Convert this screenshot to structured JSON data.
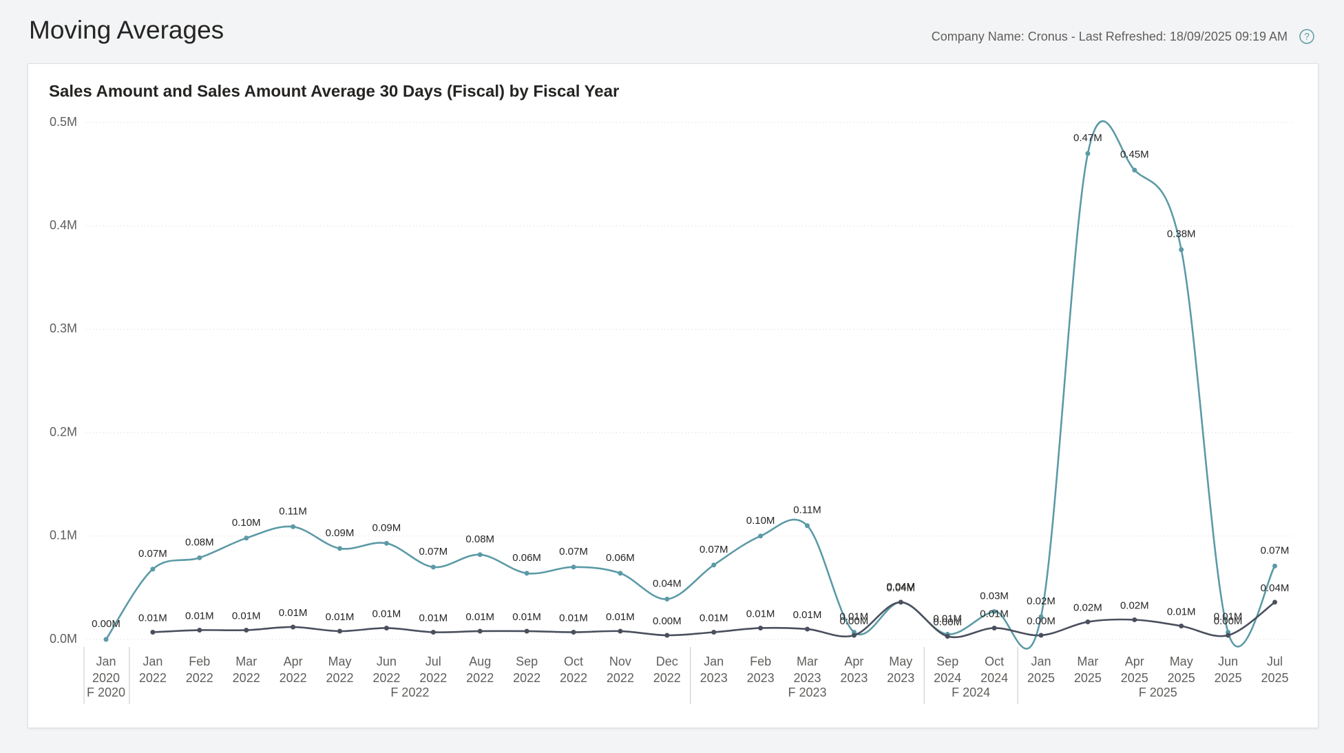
{
  "header": {
    "title": "Moving Averages",
    "info": "Company Name: Cronus - Last Refreshed: 18/09/2025 09:19 AM"
  },
  "chart_data": {
    "type": "line",
    "title": "Sales Amount and Sales Amount Average 30 Days (Fiscal) by Fiscal Year",
    "categories": [
      [
        "Jan",
        "2020"
      ],
      [
        "Jan",
        "2022"
      ],
      [
        "Feb",
        "2022"
      ],
      [
        "Mar",
        "2022"
      ],
      [
        "Apr",
        "2022"
      ],
      [
        "May",
        "2022"
      ],
      [
        "Jun",
        "2022"
      ],
      [
        "Jul",
        "2022"
      ],
      [
        "Aug",
        "2022"
      ],
      [
        "Sep",
        "2022"
      ],
      [
        "Oct",
        "2022"
      ],
      [
        "Nov",
        "2022"
      ],
      [
        "Dec",
        "2022"
      ],
      [
        "Jan",
        "2023"
      ],
      [
        "Feb",
        "2023"
      ],
      [
        "Mar",
        "2023"
      ],
      [
        "Apr",
        "2023"
      ],
      [
        "May",
        "2023"
      ],
      [
        "Sep",
        "2024"
      ],
      [
        "Oct",
        "2024"
      ],
      [
        "Jan",
        "2025"
      ],
      [
        "Mar",
        "2025"
      ],
      [
        "Apr",
        "2025"
      ],
      [
        "May",
        "2025"
      ],
      [
        "Jun",
        "2025"
      ],
      [
        "Jul",
        "2025"
      ]
    ],
    "groups": [
      {
        "label": "F 2020",
        "count": 1
      },
      {
        "label": "F 2022",
        "count": 12
      },
      {
        "label": "F 2023",
        "count": 5
      },
      {
        "label": "F 2024",
        "count": 2
      },
      {
        "label": "F 2025",
        "count": 6
      }
    ],
    "series": [
      {
        "color": "#5b9aa6",
        "values": [
          0,
          68000,
          79000,
          98000,
          109000,
          88000,
          93000,
          70000,
          82000,
          64000,
          70000,
          64000,
          39000,
          72000,
          100000,
          110000,
          7000,
          36000,
          5000,
          27000,
          22000,
          470000,
          454000,
          377000,
          7000,
          71000
        ],
        "value_labels": [
          "0.00M",
          "0.07M",
          "0.08M",
          "0.10M",
          "0.11M",
          "0.09M",
          "0.09M",
          "0.07M",
          "0.08M",
          "0.06M",
          "0.07M",
          "0.06M",
          "0.04M",
          "0.07M",
          "0.10M",
          "0.11M",
          "0.01M",
          "0.04M",
          "0.01M",
          "0.03M",
          "0.02M",
          "0.47M",
          "0.45M",
          "0.38M",
          "0.01M",
          "0.07M"
        ]
      },
      {
        "color": "#4a4f5e",
        "values": [
          null,
          7000,
          9000,
          9000,
          12000,
          8000,
          11000,
          7000,
          8000,
          8000,
          7000,
          8000,
          4000,
          7000,
          11000,
          10000,
          4000,
          36000,
          3000,
          11000,
          4000,
          17000,
          19000,
          13000,
          4000,
          36000
        ],
        "value_labels": [
          null,
          "0.01M",
          "0.01M",
          "0.01M",
          "0.01M",
          "0.01M",
          "0.01M",
          "0.01M",
          "0.01M",
          "0.01M",
          "0.01M",
          "0.01M",
          "0.00M",
          "0.01M",
          "0.01M",
          "0.01M",
          "0.00M",
          "0.04M",
          "0.00M",
          "0.01M",
          "0.00M",
          "0.02M",
          "0.02M",
          "0.01M",
          "0.00M",
          "0.04M"
        ]
      }
    ],
    "ylim": [
      0,
      500000
    ],
    "yticks": [
      {
        "value": 0,
        "label": "0.0M"
      },
      {
        "value": 100000,
        "label": "0.1M"
      },
      {
        "value": 200000,
        "label": "0.2M"
      },
      {
        "value": 300000,
        "label": "0.3M"
      },
      {
        "value": 400000,
        "label": "0.4M"
      },
      {
        "value": 500000,
        "label": "0.5M"
      }
    ],
    "grid": true
  }
}
